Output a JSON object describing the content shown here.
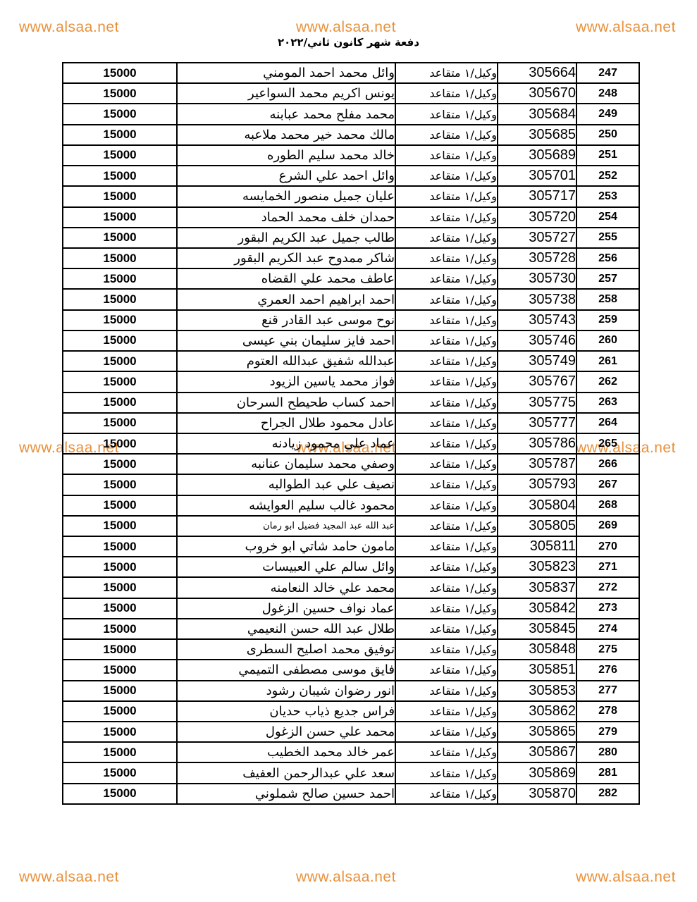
{
  "header": {
    "batch_title": "دفعة شهر كانون ثاني/٢٠٢٢"
  },
  "watermark": {
    "text": "www.alsaa.net",
    "color": "#e8913c"
  },
  "table": {
    "rows": [
      {
        "no": "247",
        "id": "305664",
        "rank": "وكيل/١ متقاعد",
        "name": "وائل محمد احمد المومني",
        "salary": "15000"
      },
      {
        "no": "248",
        "id": "305670",
        "rank": "وكيل/١ متقاعد",
        "name": "يونس اكريم محمد السواعير",
        "salary": "15000"
      },
      {
        "no": "249",
        "id": "305684",
        "rank": "وكيل/١ متقاعد",
        "name": "محمد مفلح محمد عبابنه",
        "salary": "15000"
      },
      {
        "no": "250",
        "id": "305685",
        "rank": "وكيل/١ متقاعد",
        "name": "مالك محمد خير محمد ملاعبه",
        "salary": "15000"
      },
      {
        "no": "251",
        "id": "305689",
        "rank": "وكيل/١ متقاعد",
        "name": "خالد محمد سليم الطوره",
        "salary": "15000"
      },
      {
        "no": "252",
        "id": "305701",
        "rank": "وكيل/١ متقاعد",
        "name": "وائل احمد علي الشرع",
        "salary": "15000"
      },
      {
        "no": "253",
        "id": "305717",
        "rank": "وكيل/١ متقاعد",
        "name": "عليان جميل منصور الخمايسه",
        "salary": "15000"
      },
      {
        "no": "254",
        "id": "305720",
        "rank": "وكيل/١ متقاعد",
        "name": "حمدان خلف محمد الحماد",
        "salary": "15000"
      },
      {
        "no": "255",
        "id": "305727",
        "rank": "وكيل/١ متقاعد",
        "name": "طالب جميل عبد الكريم البقور",
        "salary": "15000"
      },
      {
        "no": "256",
        "id": "305728",
        "rank": "وكيل/١ متقاعد",
        "name": "شاكر ممدوح عبد الكريم البقور",
        "salary": "15000"
      },
      {
        "no": "257",
        "id": "305730",
        "rank": "وكيل/١ متقاعد",
        "name": "عاطف محمد علي القضاه",
        "salary": "15000"
      },
      {
        "no": "258",
        "id": "305738",
        "rank": "وكيل/١ متقاعد",
        "name": "احمد ابراهيم احمد العمري",
        "salary": "15000"
      },
      {
        "no": "259",
        "id": "305743",
        "rank": "وكيل/١ متقاعد",
        "name": "نوح موسى عبد القادر قنع",
        "salary": "15000"
      },
      {
        "no": "260",
        "id": "305746",
        "rank": "وكيل/١ متقاعد",
        "name": "احمد فايز سليمان بني عيسى",
        "salary": "15000"
      },
      {
        "no": "261",
        "id": "305749",
        "rank": "وكيل/١ متقاعد",
        "name": "عبدالله شفيق عبدالله العتوم",
        "salary": "15000"
      },
      {
        "no": "262",
        "id": "305767",
        "rank": "وكيل/١ متقاعد",
        "name": "فواز محمد ياسين الزيود",
        "salary": "15000"
      },
      {
        "no": "263",
        "id": "305775",
        "rank": "وكيل/١ متقاعد",
        "name": "احمد كساب طحيطح السرحان",
        "salary": "15000"
      },
      {
        "no": "264",
        "id": "305777",
        "rank": "وكيل/١ متقاعد",
        "name": "عادل محمود طلال الجراح",
        "salary": "15000"
      },
      {
        "no": "265",
        "id": "305786",
        "rank": "وكيل/١ متقاعد",
        "name": "عماد علي محمود زيادنه",
        "salary": "15000"
      },
      {
        "no": "266",
        "id": "305787",
        "rank": "وكيل/١ متقاعد",
        "name": "وصفي محمد سليمان عنانبه",
        "salary": "15000"
      },
      {
        "no": "267",
        "id": "305793",
        "rank": "وكيل/١ متقاعد",
        "name": "نصيف علي عبد الطوالبه",
        "salary": "15000"
      },
      {
        "no": "268",
        "id": "305804",
        "rank": "وكيل/١ متقاعد",
        "name": "محمود غالب سليم العوايشه",
        "salary": "15000"
      },
      {
        "no": "269",
        "id": "305805",
        "rank": "وكيل/١ متقاعد",
        "name": "عبد الله عبد المجيد فضيل ابو رمان",
        "salary": "15000",
        "name_small": true
      },
      {
        "no": "270",
        "id": "305811",
        "rank": "وكيل/١ متقاعد",
        "name": "مامون حامد شاتي ابو خروب",
        "salary": "15000"
      },
      {
        "no": "271",
        "id": "305823",
        "rank": "وكيل/١ متقاعد",
        "name": "وائل سالم علي العبيسات",
        "salary": "15000"
      },
      {
        "no": "272",
        "id": "305837",
        "rank": "وكيل/١ متقاعد",
        "name": "محمد علي خالد النعامنه",
        "salary": "15000"
      },
      {
        "no": "273",
        "id": "305842",
        "rank": "وكيل/١ متقاعد",
        "name": "عماد نواف حسين الزغول",
        "salary": "15000"
      },
      {
        "no": "274",
        "id": "305845",
        "rank": "وكيل/١ متقاعد",
        "name": "طلال عبد الله حسن النعيمي",
        "salary": "15000"
      },
      {
        "no": "275",
        "id": "305848",
        "rank": "وكيل/١ متقاعد",
        "name": "توفيق محمد اصليح السطرى",
        "salary": "15000"
      },
      {
        "no": "276",
        "id": "305851",
        "rank": "وكيل/١ متقاعد",
        "name": "فايق موسى مصطفى التميمي",
        "salary": "15000"
      },
      {
        "no": "277",
        "id": "305853",
        "rank": "وكيل/١ متقاعد",
        "name": "انور رضوان شيبان رشود",
        "salary": "15000"
      },
      {
        "no": "278",
        "id": "305862",
        "rank": "وكيل/١ متقاعد",
        "name": "فراس جديع ذياب حديان",
        "salary": "15000"
      },
      {
        "no": "279",
        "id": "305865",
        "rank": "وكيل/١ متقاعد",
        "name": "محمد علي حسن الزغول",
        "salary": "15000"
      },
      {
        "no": "280",
        "id": "305867",
        "rank": "وكيل/١ متقاعد",
        "name": "عمر خالد محمد الخطيب",
        "salary": "15000"
      },
      {
        "no": "281",
        "id": "305869",
        "rank": "وكيل/١ متقاعد",
        "name": "سعد علي عبدالرحمن العفيف",
        "salary": "15000"
      },
      {
        "no": "282",
        "id": "305870",
        "rank": "وكيل/١ متقاعد",
        "name": "احمد حسين صالح شملوني",
        "salary": "15000"
      }
    ]
  }
}
